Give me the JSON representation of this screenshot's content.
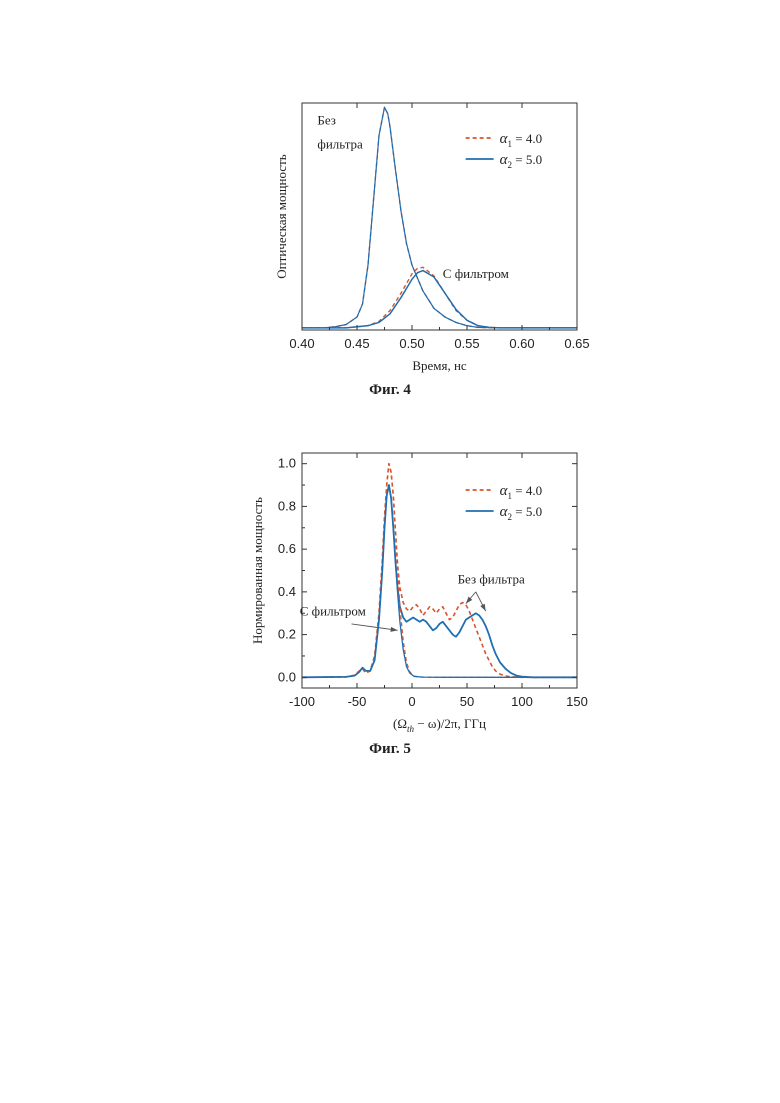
{
  "chart_data": [
    {
      "type": "line",
      "xlabel": "Время, нс",
      "ylabel": "Оптическая мощность",
      "xlim": [
        0.4,
        0.65
      ],
      "ylim": [
        0,
        1.05
      ],
      "xticks": [
        "0.40",
        "0.45",
        "0.50",
        "0.55",
        "0.60",
        "0.65"
      ],
      "yticks": [],
      "grid": false,
      "legend_position": "top-right",
      "caption": "Фиг. 4",
      "legend": [
        {
          "sym": "α",
          "sub": "1",
          "text": "= 4.0",
          "color": "#d9542b",
          "dash": "4,3"
        },
        {
          "sym": "α",
          "sub": "2",
          "text": "= 5.0",
          "color": "#1f6fb2",
          "dash": ""
        }
      ],
      "annotations": [
        {
          "text": "Без",
          "x": 0.414,
          "y": 0.95
        },
        {
          "text": "фильтра",
          "x": 0.414,
          "y": 0.84
        },
        {
          "text": "С фильтром",
          "x": 0.528,
          "y": 0.24
        }
      ],
      "series": [
        {
          "color": "#d9542b",
          "dash": "4,3",
          "width": 1.4,
          "x": [
            0.4,
            0.42,
            0.43,
            0.44,
            0.45,
            0.455,
            0.46,
            0.465,
            0.47,
            0.475,
            0.478,
            0.48,
            0.485,
            0.49,
            0.495,
            0.5,
            0.51,
            0.52,
            0.53,
            0.54,
            0.55,
            0.56,
            0.58,
            0.6,
            0.65
          ],
          "y": [
            0.01,
            0.01,
            0.015,
            0.025,
            0.06,
            0.12,
            0.3,
            0.6,
            0.9,
            1.03,
            1.0,
            0.94,
            0.74,
            0.55,
            0.4,
            0.3,
            0.18,
            0.1,
            0.06,
            0.035,
            0.02,
            0.012,
            0.01,
            0.01,
            0.01
          ]
        },
        {
          "color": "#1f6fb2",
          "dash": "",
          "width": 1.2,
          "x": [
            0.4,
            0.42,
            0.43,
            0.44,
            0.45,
            0.455,
            0.46,
            0.465,
            0.47,
            0.475,
            0.478,
            0.48,
            0.485,
            0.49,
            0.495,
            0.5,
            0.51,
            0.52,
            0.53,
            0.54,
            0.55,
            0.56,
            0.58,
            0.6,
            0.65
          ],
          "y": [
            0.01,
            0.01,
            0.015,
            0.025,
            0.06,
            0.12,
            0.3,
            0.6,
            0.9,
            1.03,
            1.0,
            0.94,
            0.74,
            0.55,
            0.4,
            0.3,
            0.18,
            0.1,
            0.06,
            0.035,
            0.02,
            0.012,
            0.01,
            0.01,
            0.01
          ]
        },
        {
          "color": "#d9542b",
          "dash": "4,3",
          "width": 1.4,
          "x": [
            0.4,
            0.44,
            0.46,
            0.47,
            0.48,
            0.49,
            0.5,
            0.505,
            0.51,
            0.52,
            0.53,
            0.54,
            0.55,
            0.56,
            0.57,
            0.58,
            0.6,
            0.65
          ],
          "y": [
            0.01,
            0.01,
            0.02,
            0.04,
            0.09,
            0.17,
            0.26,
            0.285,
            0.29,
            0.25,
            0.17,
            0.09,
            0.045,
            0.02,
            0.012,
            0.01,
            0.01,
            0.01
          ]
        },
        {
          "color": "#1f6fb2",
          "dash": "",
          "width": 1.5,
          "x": [
            0.4,
            0.44,
            0.46,
            0.47,
            0.48,
            0.49,
            0.5,
            0.505,
            0.51,
            0.52,
            0.53,
            0.54,
            0.55,
            0.56,
            0.57,
            0.58,
            0.6,
            0.65
          ],
          "y": [
            0.01,
            0.01,
            0.02,
            0.035,
            0.075,
            0.15,
            0.235,
            0.265,
            0.275,
            0.245,
            0.17,
            0.095,
            0.045,
            0.02,
            0.012,
            0.01,
            0.01,
            0.01
          ]
        }
      ]
    },
    {
      "type": "line",
      "xlabel": "(Ωth − ω)/2π, ГГц",
      "ylabel": "Нормированная мощность",
      "xlim": [
        -100,
        150
      ],
      "ylim": [
        -0.05,
        1.05
      ],
      "xticks": [
        "-100",
        "-50",
        "0",
        "50",
        "100",
        "150"
      ],
      "yticks": [
        "0.0",
        "0.2",
        "0.4",
        "0.6",
        "0.8",
        "1.0"
      ],
      "grid": false,
      "legend_position": "top-right",
      "caption": "Фиг. 5",
      "legend": [
        {
          "sym": "α",
          "sub": "1",
          "text": "= 4.0",
          "color": "#d9542b",
          "dash": "4,3"
        },
        {
          "sym": "α",
          "sub": "2",
          "text": "= 5.0",
          "color": "#1f6fb2",
          "dash": ""
        }
      ],
      "annotations": [
        {
          "text": "Без фильтра",
          "x": 72,
          "y": 0.44,
          "anchor": "middle"
        },
        {
          "text": "С фильтром",
          "x": -72,
          "y": 0.29,
          "anchor": "middle"
        }
      ],
      "arrows": [
        {
          "x1": 58,
          "y1": 0.4,
          "x2": 49,
          "y2": 0.345
        },
        {
          "x1": 58,
          "y1": 0.4,
          "x2": 67,
          "y2": 0.31
        },
        {
          "x1": -55,
          "y1": 0.25,
          "x2": -13,
          "y2": 0.22
        }
      ],
      "series": [
        {
          "color": "#d9542b",
          "dash": "4,3",
          "width": 1.6,
          "x": [
            -100,
            -60,
            -52,
            -48,
            -45,
            -42,
            -38,
            -34,
            -30,
            -27,
            -25,
            -23,
            -21,
            -19,
            -17,
            -15,
            -13,
            -11,
            -8,
            -5,
            -2,
            1,
            4,
            7,
            10,
            13,
            16,
            19,
            22,
            25,
            28,
            31,
            34,
            37,
            40,
            43,
            46,
            49,
            52,
            55,
            58,
            61,
            64,
            67,
            70,
            73,
            76,
            80,
            85,
            90,
            95,
            100,
            110,
            150
          ],
          "y": [
            0,
            0.002,
            0.01,
            0.03,
            0.04,
            0.02,
            0.03,
            0.1,
            0.3,
            0.55,
            0.75,
            0.9,
            1.0,
            0.96,
            0.85,
            0.68,
            0.52,
            0.42,
            0.35,
            0.32,
            0.31,
            0.33,
            0.34,
            0.32,
            0.29,
            0.31,
            0.33,
            0.32,
            0.3,
            0.32,
            0.33,
            0.3,
            0.27,
            0.28,
            0.31,
            0.34,
            0.35,
            0.34,
            0.31,
            0.27,
            0.23,
            0.19,
            0.15,
            0.11,
            0.08,
            0.05,
            0.03,
            0.015,
            0.006,
            0.003,
            0.001,
            0,
            0,
            0
          ]
        },
        {
          "color": "#1f6fb2",
          "dash": "",
          "width": 1.8,
          "x": [
            -100,
            -60,
            -52,
            -48,
            -45,
            -42,
            -38,
            -34,
            -30,
            -27,
            -25,
            -23,
            -21,
            -19,
            -17,
            -15,
            -13,
            -11,
            -8,
            -5,
            -2,
            1,
            4,
            7,
            10,
            13,
            16,
            19,
            22,
            25,
            28,
            31,
            34,
            37,
            40,
            43,
            46,
            49,
            52,
            55,
            58,
            61,
            64,
            67,
            70,
            73,
            76,
            80,
            85,
            90,
            95,
            100,
            110,
            150
          ],
          "y": [
            0,
            0.002,
            0.008,
            0.025,
            0.045,
            0.03,
            0.03,
            0.08,
            0.27,
            0.5,
            0.7,
            0.85,
            0.9,
            0.84,
            0.7,
            0.54,
            0.41,
            0.33,
            0.28,
            0.26,
            0.27,
            0.28,
            0.27,
            0.26,
            0.27,
            0.26,
            0.24,
            0.22,
            0.23,
            0.25,
            0.26,
            0.24,
            0.22,
            0.2,
            0.19,
            0.21,
            0.24,
            0.27,
            0.28,
            0.29,
            0.3,
            0.29,
            0.27,
            0.24,
            0.2,
            0.15,
            0.11,
            0.07,
            0.04,
            0.02,
            0.008,
            0.003,
            0,
            0
          ]
        },
        {
          "color": "#d9542b",
          "dash": "4,3",
          "width": 1.3,
          "x": [
            -100,
            -60,
            -52,
            -48,
            -45,
            -42,
            -38,
            -34,
            -30,
            -27,
            -25,
            -23,
            -21,
            -19,
            -17,
            -15,
            -13,
            -11,
            -8,
            -5,
            -2,
            2,
            10,
            30,
            150
          ],
          "y": [
            0,
            0.002,
            0.01,
            0.03,
            0.04,
            0.02,
            0.03,
            0.1,
            0.3,
            0.55,
            0.75,
            0.9,
            1.0,
            0.96,
            0.85,
            0.68,
            0.5,
            0.33,
            0.17,
            0.07,
            0.025,
            0.005,
            0.001,
            0,
            0
          ]
        },
        {
          "color": "#1f6fb2",
          "dash": "",
          "width": 1.3,
          "x": [
            -100,
            -60,
            -52,
            -48,
            -45,
            -42,
            -38,
            -34,
            -30,
            -27,
            -25,
            -23,
            -21,
            -19,
            -17,
            -15,
            -13,
            -11,
            -8,
            -5,
            -2,
            2,
            10,
            30,
            150
          ],
          "y": [
            0,
            0.002,
            0.008,
            0.025,
            0.045,
            0.03,
            0.03,
            0.08,
            0.27,
            0.5,
            0.7,
            0.85,
            0.9,
            0.84,
            0.7,
            0.54,
            0.39,
            0.26,
            0.13,
            0.05,
            0.02,
            0.004,
            0.001,
            0,
            0
          ]
        }
      ]
    }
  ]
}
